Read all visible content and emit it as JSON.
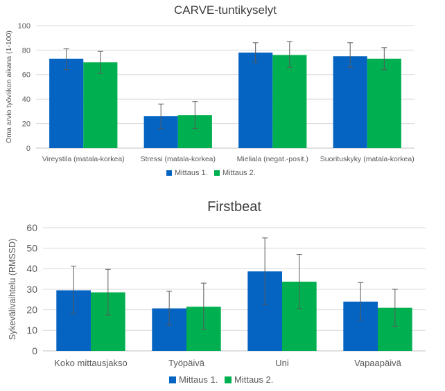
{
  "colors": {
    "series1": "#0563C1",
    "series2": "#00B050",
    "grid": "#D9D9D9",
    "axis": "#BFBFBF",
    "text": "#595959",
    "title": "#404040",
    "error": "#595959"
  },
  "chart_data": [
    {
      "type": "bar",
      "title": "CARVE-tuntikyselyt",
      "ylabel": "Oma arvio työviikon aikana (1-100)",
      "xlabel": "",
      "ylim": [
        0,
        100
      ],
      "yticks": [
        0,
        20,
        40,
        60,
        80,
        100
      ],
      "grid": true,
      "legend_position": "bottom",
      "categories": [
        "Vireystila (matala-korkea)",
        "Stressi (matala-korkea)",
        "Mieliala (negat.-posit.)",
        "Suorituskyky (matala-korkea)"
      ],
      "series": [
        {
          "name": "Mittaus 1.",
          "values": [
            73,
            26,
            78,
            75
          ],
          "error_low": [
            64,
            16,
            70,
            66
          ],
          "error_high": [
            81,
            36,
            86,
            86
          ]
        },
        {
          "name": "Mittaus 2.",
          "values": [
            70,
            27,
            76,
            73
          ],
          "error_low": [
            61,
            16,
            66,
            64
          ],
          "error_high": [
            79,
            38,
            87,
            82
          ]
        }
      ]
    },
    {
      "type": "bar",
      "title": "Firstbeat",
      "ylabel": "Sykevälivaihtelu (RMSSD)",
      "xlabel": "",
      "ylim": [
        0,
        60
      ],
      "yticks": [
        0,
        10,
        20,
        30,
        40,
        50,
        60
      ],
      "grid": true,
      "legend_position": "bottom",
      "categories": [
        "Koko mittausjakso",
        "Työpäivä",
        "Uni",
        "Vapaapäivä"
      ],
      "series": [
        {
          "name": "Mittaus 1.",
          "values": [
            29.5,
            20.7,
            38.7,
            24
          ],
          "error_low": [
            18,
            12.5,
            22.5,
            15
          ],
          "error_high": [
            41.3,
            29,
            55,
            33.3
          ]
        },
        {
          "name": "Mittaus 2.",
          "values": [
            28.5,
            21.5,
            33.7,
            21
          ],
          "error_low": [
            17.5,
            10.5,
            20.5,
            12
          ],
          "error_high": [
            39.7,
            33,
            47,
            30
          ]
        }
      ]
    }
  ]
}
